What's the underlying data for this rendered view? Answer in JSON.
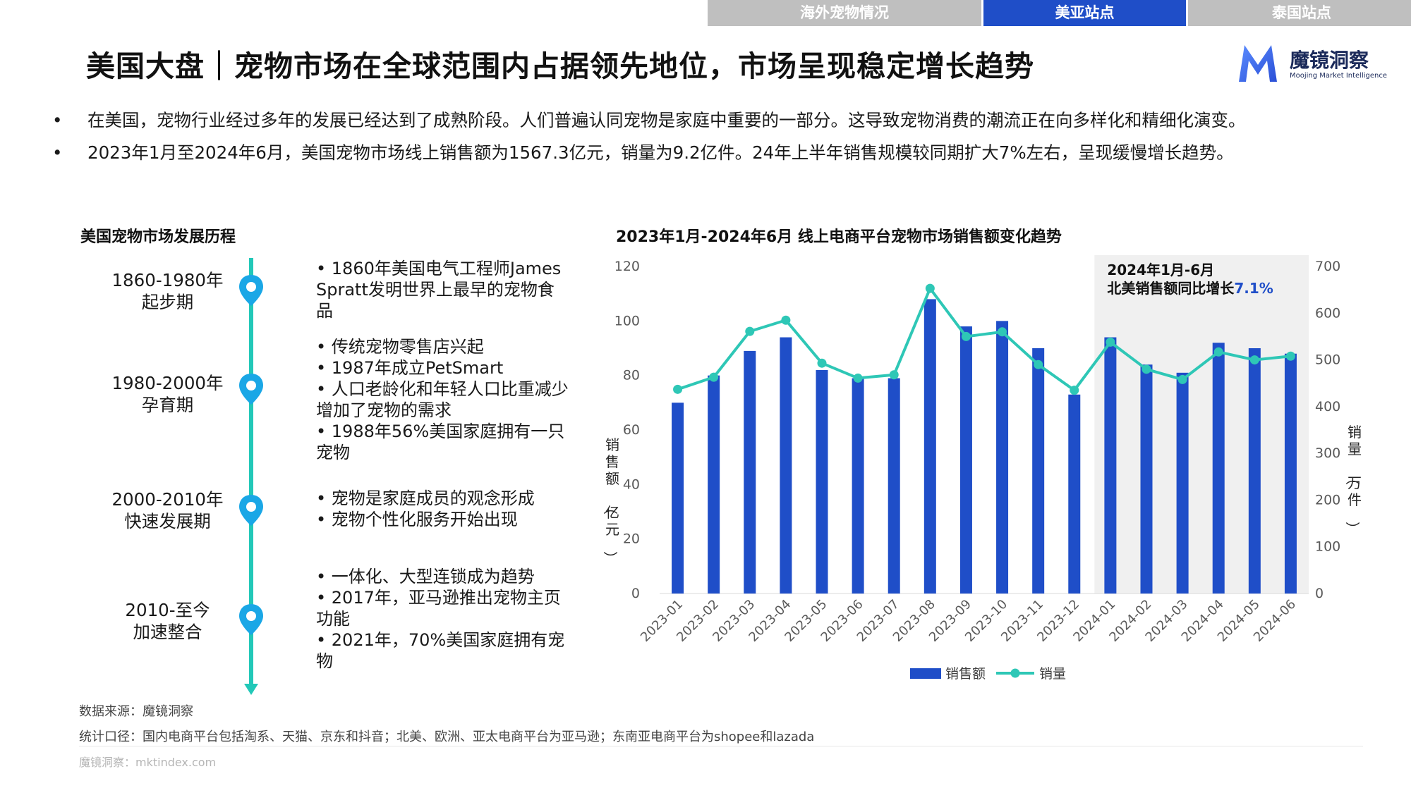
{
  "tabs": [
    {
      "label": "海外宠物情况",
      "active": false
    },
    {
      "label": "美亚站点",
      "active": true
    },
    {
      "label": "泰国站点",
      "active": false
    }
  ],
  "page_title": "美国大盘｜宠物市场在全球范围内占据领先地位，市场呈现稳定增长趋势",
  "logo": {
    "name": "魔镜洞察",
    "sub": "Moojing Market Intelligence"
  },
  "bullets": [
    "在美国，宠物行业经过多年的发展已经达到了成熟阶段。人们普遍认同宠物是家庭中重要的一部分。这导致宠物消费的潮流正在向多样化和精细化演变。",
    "2023年1月至2024年6月，美国宠物市场线上销售额为1567.3亿元，销量为9.2亿件。24年上半年销售规模较同期扩大7%左右，呈现缓慢增长趋势。"
  ],
  "bullet_marker": "•",
  "timeline": {
    "title": "美国宠物市场发展历程",
    "stages": [
      {
        "period": "1860-1980年",
        "phase": "起步期",
        "desc": [
          "•  1860年美国电气工程师James Spratt发明世界上最早的宠物食品"
        ]
      },
      {
        "period": "1980-2000年",
        "phase": "孕育期",
        "desc": [
          "• 传统宠物零售店兴起",
          "• 1987年成立PetSmart",
          "• 人口老龄化和年轻人口比重减少增加了宠物的需求",
          "• 1988年56%美国家庭拥有一只宠物"
        ]
      },
      {
        "period": "2000-2010年",
        "phase": "快速发展期",
        "desc": [
          "•  宠物是家庭成员的观念形成",
          "•  宠物个性化服务开始出现"
        ]
      },
      {
        "period": "2010-至今",
        "phase": "加速整合",
        "desc": [
          "•  一体化、大型连锁成为趋势",
          "• 2017年，亚马逊推出宠物主页功能",
          "• 2021年，70%美国家庭拥有宠物"
        ]
      }
    ]
  },
  "chart_data": {
    "type": "bar",
    "title": "2023年1月-2024年6月 线上电商平台宠物市场销售额变化趋势",
    "categories": [
      "2023-01",
      "2023-02",
      "2023-03",
      "2023-04",
      "2023-05",
      "2023-06",
      "2023-07",
      "2023-08",
      "2023-09",
      "2023-10",
      "2023-11",
      "2023-12",
      "2024-01",
      "2024-02",
      "2024-03",
      "2024-04",
      "2024-05",
      "2024-06"
    ],
    "series": [
      {
        "name": "销售额",
        "type": "bar",
        "axis": "left",
        "color": "#1f4ec8",
        "values": [
          70,
          80,
          89,
          94,
          82,
          79,
          79,
          108,
          98,
          100,
          90,
          73,
          94,
          84,
          81,
          92,
          90,
          88
        ]
      },
      {
        "name": "销量",
        "type": "line",
        "axis": "right",
        "color": "#2ec7b6",
        "values": [
          437,
          463,
          561,
          585,
          493,
          461,
          468,
          653,
          550,
          560,
          490,
          435,
          538,
          480,
          458,
          517,
          500,
          508
        ]
      }
    ],
    "ylabel_left": "销售额（亿元）",
    "ylabel_right": "销量（万件）",
    "ylim_left": [
      0,
      120
    ],
    "ylim_right": [
      0,
      700
    ],
    "yticks_left": [
      "0",
      "20",
      "40",
      "60",
      "80",
      "100",
      "120"
    ],
    "yticks_right": [
      "0",
      "100",
      "200",
      "300",
      "400",
      "500",
      "600",
      "700"
    ],
    "grid": false,
    "legend_position": "bottom",
    "highlight": {
      "from_index": 12,
      "to_index": 17,
      "line1": "2024年1月-6月",
      "line2": "北美销售额同比增长",
      "value": "7.1%",
      "value_color": "#1f4ec8",
      "bg_color": "#f0f0f0"
    }
  },
  "footnotes": {
    "source": "数据来源：魔镜洞察",
    "scope": "统计口径：国内电商平台包括淘系、天猫、京东和抖音；北美、欧洲、亚太电商平台为亚马逊；东南亚电商平台为shopee和lazada",
    "url": "魔镜洞察：mktindex.com"
  },
  "colors": {
    "accent": "#1f4ec8",
    "teal": "#22c8b8",
    "tab_inactive": "#bfbfbf"
  }
}
